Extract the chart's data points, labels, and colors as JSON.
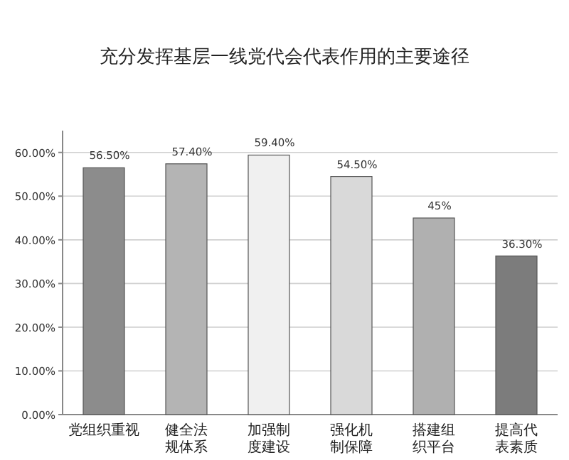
{
  "chart_data": {
    "type": "bar",
    "title": "充分发挥基层一线党代会代表作用的主要途径",
    "categories": [
      "党组织重视",
      "健全法规体系",
      "加强制度建设",
      "强化机制保障",
      "搭建组织平台",
      "提高代表素质"
    ],
    "values": [
      56.5,
      57.4,
      59.4,
      54.5,
      45,
      36.3
    ],
    "value_labels": [
      "56.50%",
      "57.40%",
      "59.40%",
      "54.50%",
      "45%",
      "36.30%"
    ],
    "colors": [
      "#8c8c8c",
      "#b4b4b4",
      "#f0f0f0",
      "#d9d9d9",
      "#b0b0b0",
      "#7c7c7c"
    ],
    "ylim": [
      0,
      65
    ],
    "yticks": [
      {
        "value": 0,
        "label": "0.00%"
      },
      {
        "value": 10,
        "label": "10.00%"
      },
      {
        "value": 20,
        "label": "20.00%"
      },
      {
        "value": 30,
        "label": "30.00%"
      },
      {
        "value": 40,
        "label": "40.00%"
      },
      {
        "value": 50,
        "label": "50.00%"
      },
      {
        "value": 60,
        "label": "60.00%"
      }
    ],
    "grid": "y"
  }
}
